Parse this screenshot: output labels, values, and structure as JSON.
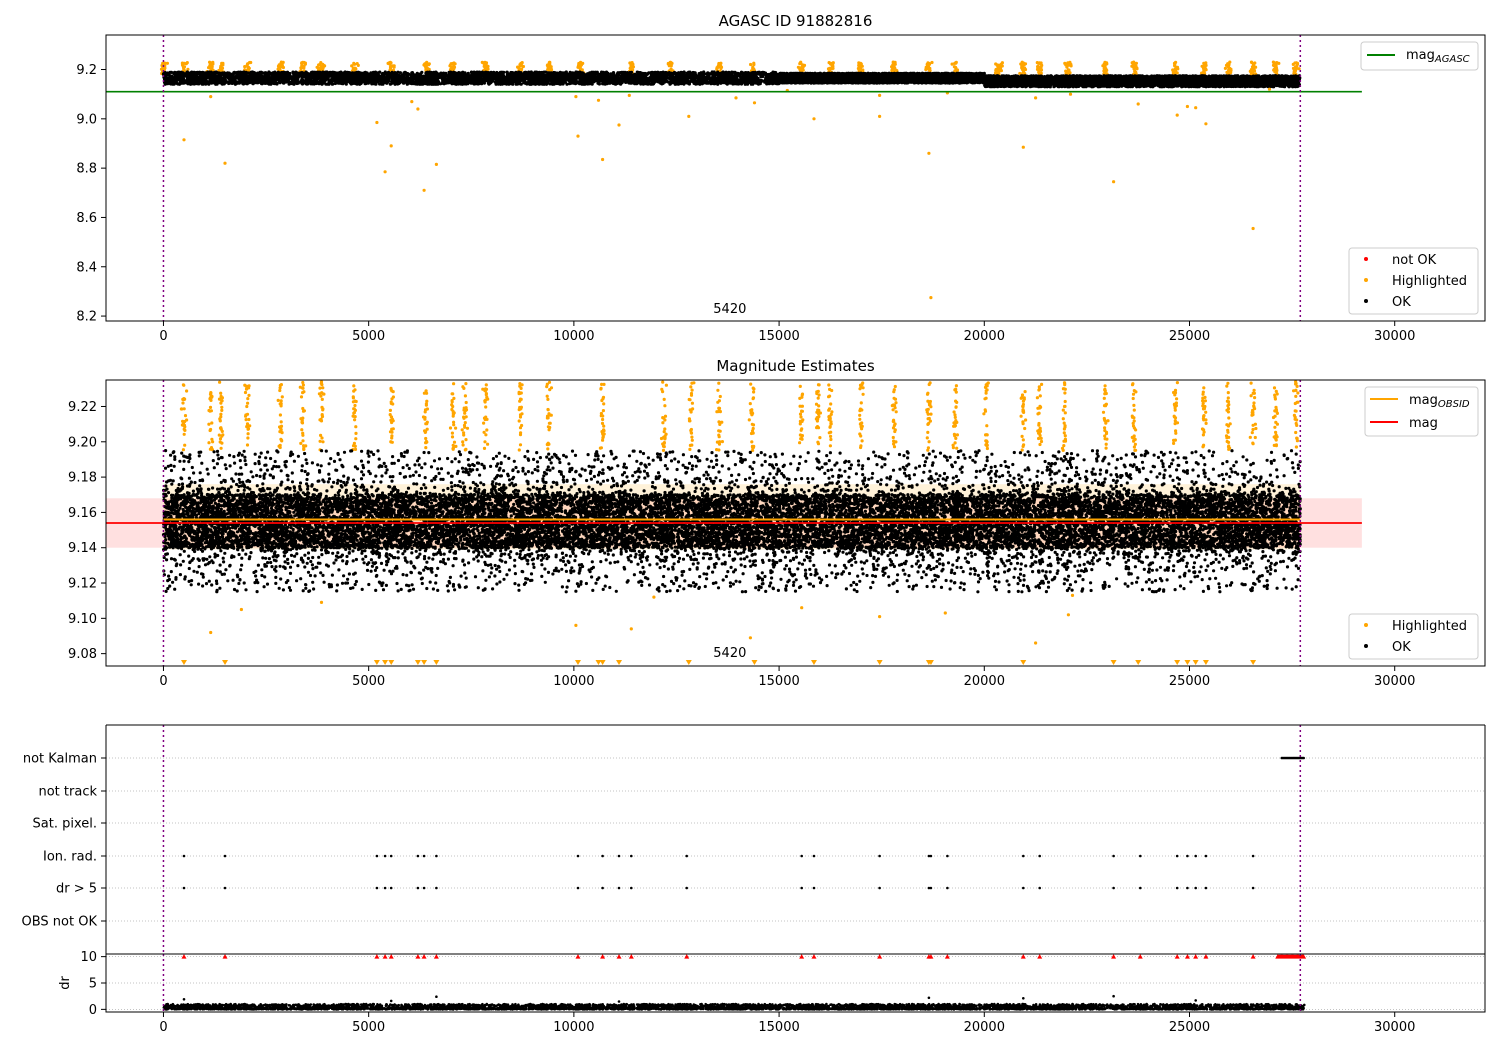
{
  "chart_data": [
    {
      "type": "scatter",
      "title": "AGASC ID 91882816",
      "xlabel": "",
      "ylabel": "",
      "xlim": [
        -1400,
        32200
      ],
      "ylim": [
        8.18,
        9.34
      ],
      "xticks": [
        0,
        5000,
        10000,
        15000,
        20000,
        25000,
        30000
      ],
      "xtick_labels": [
        "0",
        "5000",
        "10000",
        "15000",
        "20000",
        "25000",
        "30000"
      ],
      "yticks": [
        8.2,
        8.4,
        8.6,
        8.8,
        9.0,
        9.2
      ],
      "ytick_labels": [
        "8.2",
        "8.4",
        "8.6",
        "8.8",
        "9.0",
        "9.2"
      ],
      "grid": false,
      "legend_top": {
        "placement": "top-right",
        "entries": [
          {
            "label": "mag",
            "sub": "AGASC",
            "color": "#008000",
            "kind": "line"
          }
        ]
      },
      "legend_bottom": {
        "placement": "lower-right",
        "entries": [
          {
            "label": "not OK",
            "color": "#ff0000",
            "kind": "marker"
          },
          {
            "label": "Highlighted",
            "color": "#ffa500",
            "kind": "marker"
          },
          {
            "label": "OK",
            "color": "#000000",
            "kind": "marker"
          }
        ]
      },
      "obsid_label": {
        "text": "5420",
        "x": 13800
      },
      "vlines": [
        0,
        27700
      ],
      "hline": {
        "name": "mag_AGASC",
        "y": 9.11,
        "x": [
          -1400,
          29200
        ],
        "color": "#008000"
      },
      "series": [
        {
          "name": "OK",
          "color": "#000000",
          "x_range": [
            0,
            27700
          ],
          "y_range": [
            9.13,
            9.19
          ],
          "band_segments": [
            {
              "x": [
                0,
                15000
              ],
              "y": [
                9.14,
                9.19
              ]
            },
            {
              "x": [
                15000,
                20000
              ],
              "y": [
                9.145,
                9.185
              ]
            },
            {
              "x": [
                20000,
                27700
              ],
              "y": [
                9.13,
                9.175
              ]
            }
          ]
        },
        {
          "name": "Highlighted",
          "color": "#ffa500",
          "cluster_x": [
            0,
            500,
            1150,
            1400,
            2050,
            2850,
            3400,
            3850,
            4650,
            5550,
            6400,
            7050,
            7850,
            8700,
            9400,
            10150,
            11400,
            12350,
            13550,
            14350,
            15550,
            16250,
            17000,
            17800,
            18650,
            19300,
            20350,
            20950,
            21350,
            22050,
            22950,
            23650,
            24650,
            25350,
            25950,
            26550,
            27100,
            27600
          ],
          "cluster_y": [
            9.18,
            9.23
          ],
          "outliers": [
            [
              500,
              8.915
            ],
            [
              1500,
              8.82
            ],
            [
              1150,
              9.09
            ],
            [
              5200,
              8.985
            ],
            [
              5400,
              8.785
            ],
            [
              5550,
              8.89
            ],
            [
              6050,
              9.07
            ],
            [
              6200,
              9.04
            ],
            [
              6350,
              8.71
            ],
            [
              6650,
              8.815
            ],
            [
              10100,
              8.93
            ],
            [
              10050,
              9.09
            ],
            [
              10600,
              9.075
            ],
            [
              10700,
              8.835
            ],
            [
              11100,
              8.975
            ],
            [
              11350,
              9.095
            ],
            [
              12800,
              9.01
            ],
            [
              13950,
              9.085
            ],
            [
              14400,
              9.065
            ],
            [
              15200,
              9.115
            ],
            [
              15850,
              9.0
            ],
            [
              17450,
              9.01
            ],
            [
              17450,
              9.095
            ],
            [
              18650,
              8.86
            ],
            [
              18700,
              8.275
            ],
            [
              19100,
              9.105
            ],
            [
              20950,
              8.885
            ],
            [
              21250,
              9.085
            ],
            [
              22100,
              9.1
            ],
            [
              23150,
              8.745
            ],
            [
              23750,
              9.06
            ],
            [
              24700,
              9.015
            ],
            [
              24950,
              9.05
            ],
            [
              25150,
              9.045
            ],
            [
              25400,
              8.98
            ],
            [
              26550,
              8.555
            ],
            [
              26950,
              9.12
            ]
          ]
        }
      ]
    },
    {
      "type": "scatter",
      "title": "Magnitude Estimates",
      "xlabel": "",
      "ylabel": "",
      "xlim": [
        -1400,
        32200
      ],
      "ylim": [
        9.073,
        9.235
      ],
      "xticks": [
        0,
        5000,
        10000,
        15000,
        20000,
        25000,
        30000
      ],
      "xtick_labels": [
        "0",
        "5000",
        "10000",
        "15000",
        "20000",
        "25000",
        "30000"
      ],
      "yticks": [
        9.08,
        9.1,
        9.12,
        9.14,
        9.16,
        9.18,
        9.2,
        9.22
      ],
      "ytick_labels": [
        "9.08",
        "9.10",
        "9.12",
        "9.14",
        "9.16",
        "9.18",
        "9.20",
        "9.22"
      ],
      "grid": false,
      "legend_top": {
        "placement": "top-right",
        "entries": [
          {
            "label": "mag",
            "sub": "OBSID",
            "color": "#ffa500",
            "kind": "line"
          },
          {
            "label": "mag",
            "sub": "",
            "color": "#ff0000",
            "kind": "line"
          }
        ]
      },
      "legend_bottom": {
        "placement": "lower-right",
        "entries": [
          {
            "label": "Highlighted",
            "color": "#ffa500",
            "kind": "marker"
          },
          {
            "label": "OK",
            "color": "#000000",
            "kind": "marker"
          }
        ]
      },
      "obsid_label": {
        "text": "5420",
        "x": 13800
      },
      "vlines": [
        0,
        27700
      ],
      "mag_line": {
        "y": 9.154,
        "band": [
          9.14,
          9.168
        ],
        "x": [
          -1400,
          29200
        ],
        "color": "#ff0000"
      },
      "obsid_line": {
        "y": 9.156,
        "band": [
          9.139,
          9.176
        ],
        "x": [
          0,
          27700
        ],
        "color": "#ffa500"
      },
      "series": [
        {
          "name": "OK",
          "color": "#000000",
          "x_range": [
            0,
            27700
          ],
          "core_y": [
            9.14,
            9.17
          ],
          "y_range": [
            9.115,
            9.195
          ]
        },
        {
          "name": "Highlighted",
          "color": "#ffa500",
          "cluster_x": [
            500,
            1150,
            1400,
            2050,
            2850,
            3400,
            3850,
            4650,
            5550,
            6400,
            7050,
            7350,
            7850,
            8700,
            9400,
            10700,
            12200,
            12850,
            13550,
            14350,
            15550,
            15950,
            16250,
            17000,
            17800,
            18650,
            19300,
            20050,
            20950,
            21350,
            21950,
            22950,
            23650,
            24650,
            25350,
            25950,
            26550,
            27100,
            27600
          ],
          "cluster_y": [
            9.195,
            9.234
          ],
          "outliers": [
            [
              1150,
              9.092
            ],
            [
              1900,
              9.105
            ],
            [
              3850,
              9.109
            ],
            [
              10050,
              9.096
            ],
            [
              11400,
              9.094
            ],
            [
              11950,
              9.112
            ],
            [
              14300,
              9.089
            ],
            [
              15550,
              9.106
            ],
            [
              17450,
              9.101
            ],
            [
              19050,
              9.103
            ],
            [
              21250,
              9.086
            ],
            [
              22050,
              9.102
            ],
            [
              22150,
              9.113
            ]
          ],
          "lower_clipped_x": [
            500,
            1500,
            5200,
            5400,
            5550,
            6200,
            6350,
            6650,
            10100,
            10600,
            10700,
            11100,
            12800,
            14400,
            15850,
            17450,
            18650,
            18700,
            20950,
            23150,
            23750,
            24700,
            24950,
            25150,
            25400,
            26550
          ]
        }
      ]
    },
    {
      "type": "scatter",
      "title": "",
      "xlabel": "",
      "ylabel": "",
      "xlim": [
        -1400,
        32200
      ],
      "xticks": [
        0,
        5000,
        10000,
        15000,
        20000,
        25000,
        30000
      ],
      "xtick_labels": [
        "0",
        "5000",
        "10000",
        "15000",
        "20000",
        "25000",
        "30000"
      ],
      "vlines": [
        0,
        27700
      ],
      "categories": [
        "not Kalman",
        "not track",
        "Sat. pixel.",
        "Ion. rad.",
        "dr > 5",
        "OBS not OK"
      ],
      "flags": {
        "not Kalman": {
          "x_range": [
            27250,
            27800
          ]
        },
        "not track": {
          "x": []
        },
        "Sat. pixel.": {
          "x": []
        },
        "Ion. rad.": {
          "x": [
            500,
            1500,
            5200,
            5400,
            5550,
            6200,
            6350,
            6650,
            10100,
            10700,
            11100,
            11400,
            12750,
            15550,
            15850,
            17450,
            18650,
            18700,
            19100,
            20950,
            21350,
            23150,
            23800,
            24700,
            24950,
            25150,
            25400,
            26550
          ]
        },
        "dr > 5": {
          "x": [
            500,
            1500,
            5200,
            5400,
            5550,
            6200,
            6350,
            6650,
            10100,
            10700,
            11100,
            11400,
            12750,
            15550,
            15850,
            17450,
            18650,
            18700,
            19100,
            20950,
            21350,
            23150,
            23800,
            24700,
            24950,
            25150,
            25400,
            26550
          ]
        },
        "OBS not OK": {
          "x": []
        }
      }
    },
    {
      "type": "scatter",
      "title": "",
      "xlabel": "",
      "ylabel": "dr",
      "xlim": [
        -1400,
        32200
      ],
      "ylim": [
        -0.5,
        10.5
      ],
      "xticks": [
        0,
        5000,
        10000,
        15000,
        20000,
        25000,
        30000
      ],
      "xtick_labels": [
        "0",
        "5000",
        "10000",
        "15000",
        "20000",
        "25000",
        "30000"
      ],
      "yticks": [
        0,
        5,
        10
      ],
      "ytick_labels": [
        "0",
        "5",
        "10"
      ],
      "grid": true,
      "vlines": [
        0,
        27700
      ],
      "series": [
        {
          "name": "dr",
          "color": "#000000",
          "x_range": [
            0,
            27800
          ],
          "y_range": [
            0.0,
            1.0
          ],
          "spikes": [
            [
              500,
              1.9
            ],
            [
              5550,
              1.6
            ],
            [
              6650,
              2.4
            ],
            [
              11100,
              1.5
            ],
            [
              18650,
              2.2
            ],
            [
              20950,
              2.1
            ],
            [
              23150,
              2.5
            ],
            [
              25150,
              1.7
            ]
          ]
        },
        {
          "name": "dr > 10",
          "color": "#ff0000",
          "y": 10,
          "x": [
            500,
            1500,
            5200,
            5400,
            5550,
            6200,
            6350,
            6650,
            10100,
            10700,
            11100,
            11400,
            12750,
            15550,
            15850,
            17450,
            18650,
            18700,
            19100,
            20950,
            21350,
            23150,
            23800,
            24700,
            24950,
            25150,
            25400,
            26550
          ],
          "x_range": [
            27150,
            27800
          ]
        }
      ]
    }
  ]
}
